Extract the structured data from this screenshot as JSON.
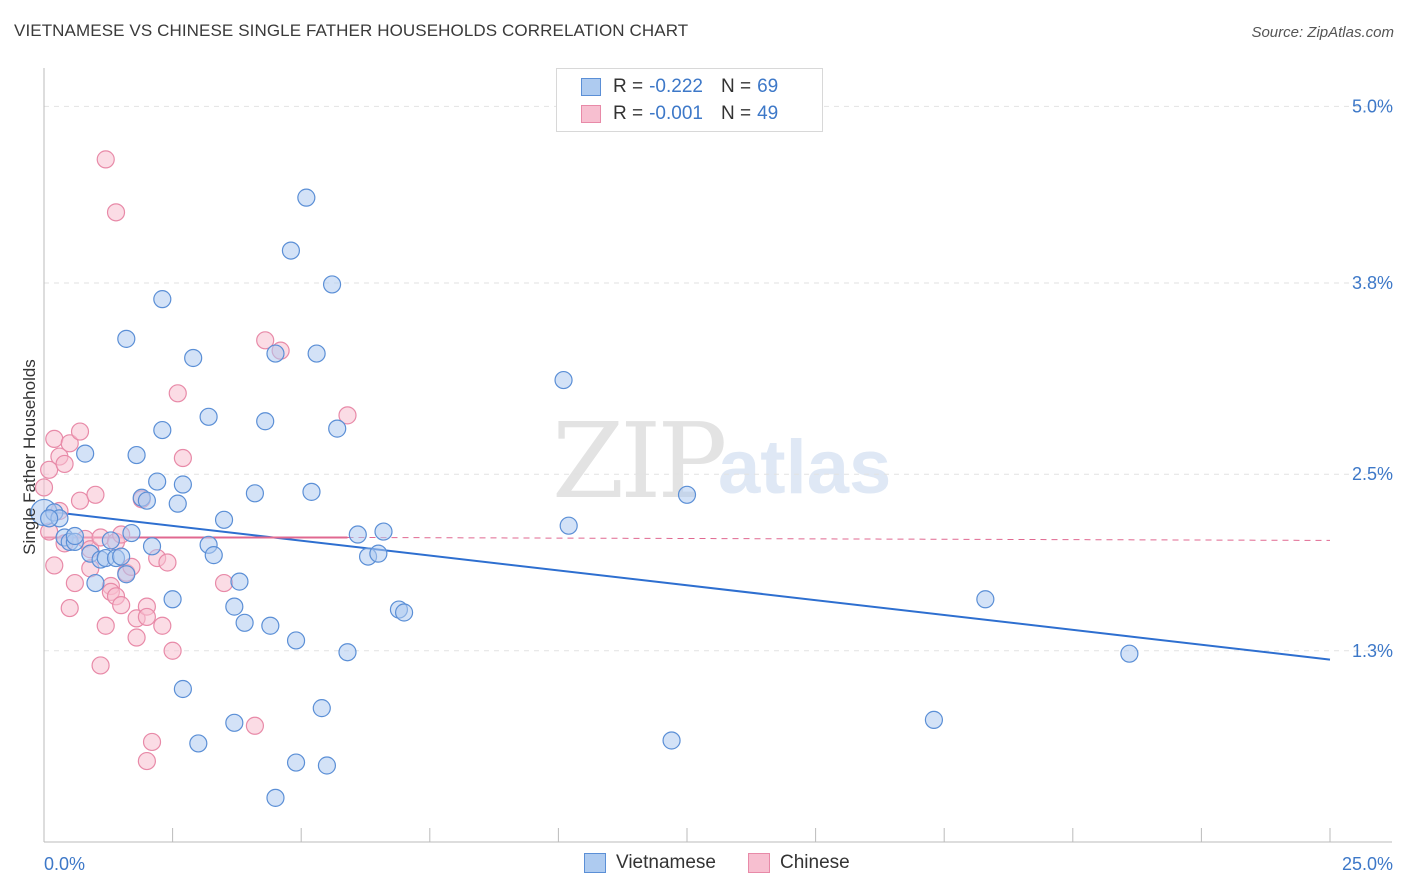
{
  "header": {
    "title": "VIETNAMESE VS CHINESE SINGLE FATHER HOUSEHOLDS CORRELATION CHART",
    "source": "Source: ZipAtlas.com"
  },
  "watermark": {
    "part1": "ZIP",
    "part2": "atlas"
  },
  "legend_top": {
    "rows": [
      {
        "r_label": "R =",
        "r_value": "-0.222",
        "n_label": "N =",
        "n_value": "69"
      },
      {
        "r_label": "R =",
        "r_value": "-0.001",
        "n_label": "N =",
        "n_value": "49"
      }
    ]
  },
  "legend_bottom": {
    "items": [
      "Vietnamese",
      "Chinese"
    ]
  },
  "colors": {
    "blue_fill": "#aecbf0",
    "blue_stroke": "#5b8fd6",
    "blue_line": "#2e6fd0",
    "pink_fill": "#f7bfd0",
    "pink_stroke": "#e88aa8",
    "pink_line": "#e06890",
    "grid": "#e2e2e2",
    "axis_text": "#3d78c8"
  },
  "chart_data": {
    "type": "scatter",
    "title": "VIETNAMESE VS CHINESE SINGLE FATHER HOUSEHOLDS CORRELATION CHART",
    "xlabel": "",
    "ylabel": "Single Father Households",
    "xlim": [
      0,
      25
    ],
    "ylim": [
      0.0,
      5.2
    ],
    "x_tick_labels": [
      "0.0%",
      "25.0%"
    ],
    "y_ticks": [
      5.0,
      3.8,
      2.5,
      1.3
    ],
    "y_tick_labels": [
      "5.0%",
      "3.8%",
      "2.5%",
      "1.3%"
    ],
    "series": [
      {
        "name": "Vietnamese",
        "r": -0.222,
        "n": 69,
        "trend": {
          "x": [
            0.0,
            25.0
          ],
          "y": [
            2.25,
            1.24
          ]
        },
        "points": [
          [
            0.0,
            2.24
          ],
          [
            0.2,
            2.24
          ],
          [
            0.3,
            2.2
          ],
          [
            0.4,
            2.07
          ],
          [
            0.5,
            2.04
          ],
          [
            0.6,
            2.04
          ],
          [
            0.8,
            2.64
          ],
          [
            0.9,
            1.96
          ],
          [
            1.0,
            1.76
          ],
          [
            1.1,
            1.92
          ],
          [
            1.2,
            1.93
          ],
          [
            1.3,
            2.05
          ],
          [
            1.4,
            1.93
          ],
          [
            1.5,
            1.94
          ],
          [
            1.6,
            1.82
          ],
          [
            1.6,
            3.42
          ],
          [
            1.7,
            2.1
          ],
          [
            1.8,
            2.63
          ],
          [
            1.9,
            2.34
          ],
          [
            2.0,
            2.32
          ],
          [
            2.1,
            2.01
          ],
          [
            2.2,
            2.45
          ],
          [
            2.3,
            3.69
          ],
          [
            2.3,
            2.8
          ],
          [
            2.5,
            1.65
          ],
          [
            2.6,
            2.3
          ],
          [
            2.7,
            2.43
          ],
          [
            2.7,
            1.04
          ],
          [
            2.9,
            3.29
          ],
          [
            3.0,
            0.67
          ],
          [
            3.2,
            2.02
          ],
          [
            3.2,
            2.89
          ],
          [
            3.3,
            1.95
          ],
          [
            3.5,
            2.19
          ],
          [
            3.7,
            1.6
          ],
          [
            3.7,
            0.81
          ],
          [
            3.8,
            1.77
          ],
          [
            3.9,
            1.49
          ],
          [
            4.1,
            2.37
          ],
          [
            4.3,
            2.86
          ],
          [
            4.4,
            1.47
          ],
          [
            4.5,
            0.3
          ],
          [
            4.5,
            3.32
          ],
          [
            4.8,
            4.02
          ],
          [
            4.9,
            1.37
          ],
          [
            4.9,
            0.54
          ],
          [
            5.1,
            4.38
          ],
          [
            5.2,
            2.38
          ],
          [
            5.3,
            3.32
          ],
          [
            5.4,
            0.91
          ],
          [
            5.5,
            0.52
          ],
          [
            5.6,
            3.79
          ],
          [
            5.7,
            2.81
          ],
          [
            5.9,
            1.29
          ],
          [
            6.1,
            2.09
          ],
          [
            6.3,
            1.94
          ],
          [
            6.5,
            1.96
          ],
          [
            6.6,
            2.11
          ],
          [
            6.9,
            1.58
          ],
          [
            7.0,
            1.56
          ],
          [
            10.1,
            3.14
          ],
          [
            10.2,
            2.15
          ],
          [
            12.2,
            0.69
          ],
          [
            12.5,
            2.36
          ],
          [
            17.3,
            0.83
          ],
          [
            18.3,
            1.65
          ],
          [
            21.1,
            1.28
          ],
          [
            0.1,
            2.2
          ],
          [
            0.6,
            2.08
          ]
        ]
      },
      {
        "name": "Chinese",
        "r": -0.001,
        "n": 49,
        "trend": {
          "x": [
            0.0,
            5.9
          ],
          "y": [
            2.07,
            2.07
          ]
        },
        "trend_dashed": {
          "x": [
            5.9,
            25.0
          ],
          "y": [
            2.07,
            2.05
          ]
        },
        "points": [
          [
            0.0,
            2.41
          ],
          [
            0.1,
            2.53
          ],
          [
            0.1,
            2.11
          ],
          [
            0.2,
            2.74
          ],
          [
            0.2,
            1.88
          ],
          [
            0.3,
            2.62
          ],
          [
            0.4,
            2.03
          ],
          [
            0.4,
            2.57
          ],
          [
            0.5,
            2.71
          ],
          [
            0.5,
            1.59
          ],
          [
            0.6,
            1.76
          ],
          [
            0.7,
            2.32
          ],
          [
            0.7,
            2.79
          ],
          [
            0.8,
            2.06
          ],
          [
            0.9,
            1.99
          ],
          [
            0.9,
            1.86
          ],
          [
            1.0,
            2.36
          ],
          [
            1.1,
            2.07
          ],
          [
            1.1,
            1.2
          ],
          [
            1.2,
            1.47
          ],
          [
            1.2,
            4.64
          ],
          [
            1.3,
            1.74
          ],
          [
            1.3,
            1.7
          ],
          [
            1.4,
            1.67
          ],
          [
            1.4,
            2.04
          ],
          [
            1.5,
            2.09
          ],
          [
            1.5,
            1.61
          ],
          [
            1.6,
            1.83
          ],
          [
            1.7,
            1.87
          ],
          [
            1.8,
            1.52
          ],
          [
            1.8,
            1.39
          ],
          [
            1.9,
            2.33
          ],
          [
            2.0,
            1.6
          ],
          [
            2.0,
            0.55
          ],
          [
            2.0,
            1.53
          ],
          [
            2.1,
            0.68
          ],
          [
            2.2,
            1.93
          ],
          [
            2.3,
            1.47
          ],
          [
            2.4,
            1.9
          ],
          [
            2.5,
            1.3
          ],
          [
            2.6,
            3.05
          ],
          [
            2.7,
            2.61
          ],
          [
            3.5,
            1.76
          ],
          [
            4.1,
            0.79
          ],
          [
            4.3,
            3.41
          ],
          [
            4.6,
            3.34
          ],
          [
            5.9,
            2.9
          ],
          [
            0.3,
            2.25
          ],
          [
            1.4,
            4.28
          ]
        ]
      }
    ]
  }
}
